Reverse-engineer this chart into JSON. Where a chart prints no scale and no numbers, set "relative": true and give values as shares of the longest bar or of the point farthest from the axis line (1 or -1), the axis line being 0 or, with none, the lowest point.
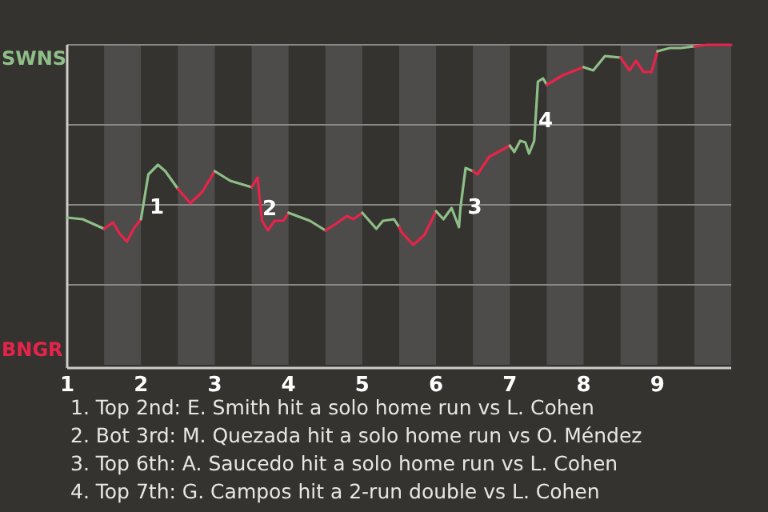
{
  "chart_data": {
    "type": "line",
    "relative": true,
    "xlim": [
      1,
      10
    ],
    "xticks": [
      1,
      2,
      3,
      4,
      5,
      6,
      7,
      8,
      9
    ],
    "ref_lines": [
      {
        "axis": "y",
        "value": 0.25,
        "color": "#8a8886"
      },
      {
        "axis": "y",
        "value": 0.5,
        "color": "#8a8886"
      },
      {
        "axis": "y",
        "value": 0.75,
        "color": "#8a8886"
      },
      {
        "axis": "y",
        "value": 1,
        "color": "#8a8886"
      }
    ],
    "bands": [
      {
        "axis": "x",
        "from": 1.5,
        "to": 2,
        "color": "#4d4c4a"
      },
      {
        "axis": "x",
        "from": 2.5,
        "to": 3,
        "color": "#4d4c4a"
      },
      {
        "axis": "x",
        "from": 3.5,
        "to": 4,
        "color": "#4d4c4a"
      },
      {
        "axis": "x",
        "from": 4.5,
        "to": 5,
        "color": "#4d4c4a"
      },
      {
        "axis": "x",
        "from": 5.5,
        "to": 6,
        "color": "#4d4c4a"
      },
      {
        "axis": "x",
        "from": 6.5,
        "to": 7,
        "color": "#4d4c4a"
      },
      {
        "axis": "x",
        "from": 7.5,
        "to": 8,
        "color": "#4d4c4a"
      },
      {
        "axis": "x",
        "from": 8.5,
        "to": 9,
        "color": "#4d4c4a"
      },
      {
        "axis": "x",
        "from": 9.5,
        "to": 10,
        "color": "#4d4c4a"
      }
    ],
    "series": [
      {
        "color": "#8fbf88",
        "x": [
          1,
          1.21,
          1.5
        ],
        "values": [
          0.46,
          0.455,
          0.425
        ]
      },
      {
        "color": "#e8234a",
        "x": [
          1.5,
          1.62,
          1.71,
          1.81,
          1.9,
          2
        ],
        "values": [
          0.425,
          0.445,
          0.41,
          0.385,
          0.425,
          0.455
        ]
      },
      {
        "color": "#8fbf88",
        "x": [
          2,
          2.1,
          2.23,
          2.33,
          2.5
        ],
        "values": [
          0.455,
          0.595,
          0.625,
          0.605,
          0.55
        ]
      },
      {
        "color": "#e8234a",
        "x": [
          2.5,
          2.67,
          2.83,
          3
        ],
        "values": [
          0.55,
          0.505,
          0.54,
          0.605
        ]
      },
      {
        "color": "#8fbf88",
        "x": [
          3,
          3.21,
          3.5
        ],
        "values": [
          0.605,
          0.575,
          0.555
        ]
      },
      {
        "color": "#e8234a",
        "x": [
          3.5,
          3.58,
          3.64,
          3.72,
          3.81,
          3.93,
          4
        ],
        "values": [
          0.555,
          0.585,
          0.45,
          0.42,
          0.45,
          0.45,
          0.475
        ]
      },
      {
        "color": "#8fbf88",
        "x": [
          4,
          4.29,
          4.5
        ],
        "values": [
          0.475,
          0.45,
          0.42
        ]
      },
      {
        "color": "#e8234a",
        "x": [
          4.5,
          4.64,
          4.79,
          4.88,
          5
        ],
        "values": [
          0.42,
          0.44,
          0.465,
          0.455,
          0.475
        ]
      },
      {
        "color": "#8fbf88",
        "x": [
          5,
          5.19,
          5.28,
          5.43,
          5.5
        ],
        "values": [
          0.475,
          0.425,
          0.45,
          0.455,
          0.43
        ]
      },
      {
        "color": "#e8234a",
        "x": [
          5.5,
          5.53,
          5.69,
          5.84,
          6
        ],
        "values": [
          0.43,
          0.415,
          0.375,
          0.405,
          0.48
        ]
      },
      {
        "color": "#8fbf88",
        "x": [
          6,
          6.1,
          6.21,
          6.31,
          6.33,
          6.4,
          6.5
        ],
        "values": [
          0.48,
          0.455,
          0.49,
          0.43,
          0.49,
          0.615,
          0.605
        ]
      },
      {
        "color": "#e8234a",
        "x": [
          6.5,
          6.56,
          6.72,
          7
        ],
        "values": [
          0.605,
          0.595,
          0.65,
          0.685
        ]
      },
      {
        "color": "#8fbf88",
        "x": [
          7,
          7.06,
          7.14,
          7.21,
          7.26,
          7.33,
          7.38,
          7.45,
          7.5
        ],
        "values": [
          0.685,
          0.665,
          0.7,
          0.695,
          0.66,
          0.7,
          0.885,
          0.895,
          0.875
        ]
      },
      {
        "color": "#e8234a",
        "x": [
          7.5,
          7.72,
          7.94,
          8
        ],
        "values": [
          0.875,
          0.905,
          0.925,
          0.93
        ]
      },
      {
        "color": "#8fbf88",
        "x": [
          8,
          8.13,
          8.29,
          8.5
        ],
        "values": [
          0.93,
          0.92,
          0.965,
          0.96
        ]
      },
      {
        "color": "#e8234a",
        "x": [
          8.5,
          8.62,
          8.71,
          8.81,
          8.92,
          9
        ],
        "values": [
          0.96,
          0.92,
          0.95,
          0.915,
          0.915,
          0.98
        ]
      },
      {
        "color": "#8fbf88",
        "x": [
          9,
          9.17,
          9.32,
          9.5
        ],
        "values": [
          0.98,
          0.99,
          0.99,
          0.995
        ]
      },
      {
        "color": "#e8234a",
        "x": [
          9.5,
          9.67,
          10
        ],
        "values": [
          0.995,
          1,
          1
        ]
      }
    ],
    "annotations": [
      "SWNS",
      "BNGR",
      {
        "text": "1",
        "x": 2.15,
        "y": 0.49
      },
      {
        "text": "2",
        "x": 3.68,
        "y": 0.485
      },
      {
        "text": "3",
        "x": 6.46,
        "y": 0.49
      },
      {
        "text": "4",
        "x": 7.42,
        "y": 0.76
      },
      "1. Top 2nd: E. Smith hit a solo home run vs L. Cohen",
      "2. Bot 3rd: M. Quezada hit a solo home run vs O. Méndez",
      "3. Top 6th: A. Saucedo hit a solo home run vs L. Cohen",
      "4. Top 7th: G. Campos hit a 2-run double vs L. Cohen"
    ]
  }
}
